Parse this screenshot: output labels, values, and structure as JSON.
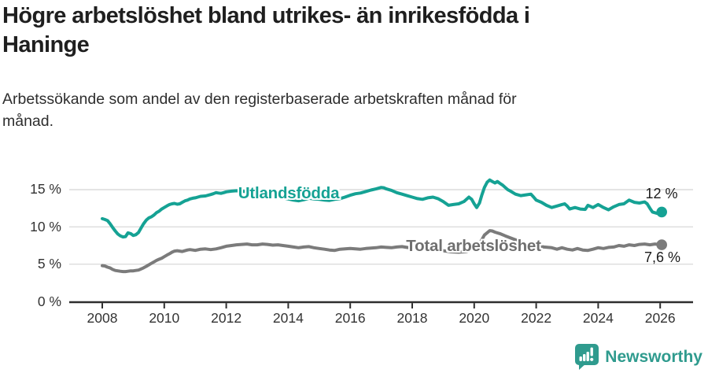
{
  "header": {
    "title": "Högre arbetslöshet bland utrikes- än inrikesfödda i\nHaninge",
    "subtitle": "Arbetssökande som andel av den registerbaserade arbetskraften månad för\nmånad."
  },
  "chart_data": {
    "type": "line",
    "title": "Högre arbetslöshet bland utrikes- än inrikesfödda i Haninge",
    "subtitle": "Arbetssökande som andel av den registerbaserade arbetskraften månad för månad.",
    "unit": "%",
    "xlim": [
      2007.9,
      2026.3
    ],
    "ylim": [
      0,
      16.5
    ],
    "grid": "horizontal",
    "legend_position": "inline-labels",
    "x_ticks": [
      2008,
      2010,
      2012,
      2014,
      2016,
      2018,
      2020,
      2022,
      2024,
      2026
    ],
    "y_ticks": [
      {
        "value": 0,
        "label": "0 %"
      },
      {
        "value": 5,
        "label": "5 %"
      },
      {
        "value": 10,
        "label": "10 %"
      },
      {
        "value": 15,
        "label": "15 %"
      }
    ],
    "series": [
      {
        "name": "Utlandsfödda",
        "color": "#15a294",
        "end_label": "12 %",
        "end_value": 12.0,
        "points": [
          [
            2008.0,
            11.1
          ],
          [
            2008.08,
            11.0
          ],
          [
            2008.17,
            10.85
          ],
          [
            2008.25,
            10.45
          ],
          [
            2008.33,
            9.95
          ],
          [
            2008.42,
            9.45
          ],
          [
            2008.5,
            9.05
          ],
          [
            2008.58,
            8.8
          ],
          [
            2008.67,
            8.65
          ],
          [
            2008.75,
            8.7
          ],
          [
            2008.83,
            9.2
          ],
          [
            2008.92,
            9.1
          ],
          [
            2009.0,
            8.85
          ],
          [
            2009.08,
            8.95
          ],
          [
            2009.17,
            9.25
          ],
          [
            2009.25,
            9.85
          ],
          [
            2009.33,
            10.4
          ],
          [
            2009.42,
            10.9
          ],
          [
            2009.5,
            11.2
          ],
          [
            2009.58,
            11.35
          ],
          [
            2009.67,
            11.6
          ],
          [
            2009.75,
            11.9
          ],
          [
            2009.83,
            12.1
          ],
          [
            2009.92,
            12.4
          ],
          [
            2010.0,
            12.6
          ],
          [
            2010.08,
            12.8
          ],
          [
            2010.17,
            13.0
          ],
          [
            2010.25,
            13.1
          ],
          [
            2010.33,
            13.15
          ],
          [
            2010.42,
            13.05
          ],
          [
            2010.5,
            13.1
          ],
          [
            2010.58,
            13.3
          ],
          [
            2010.67,
            13.5
          ],
          [
            2010.75,
            13.6
          ],
          [
            2010.83,
            13.75
          ],
          [
            2010.92,
            13.85
          ],
          [
            2011.0,
            13.9
          ],
          [
            2011.08,
            14.0
          ],
          [
            2011.17,
            14.1
          ],
          [
            2011.33,
            14.15
          ],
          [
            2011.5,
            14.35
          ],
          [
            2011.58,
            14.45
          ],
          [
            2011.67,
            14.6
          ],
          [
            2011.75,
            14.55
          ],
          [
            2011.83,
            14.5
          ],
          [
            2011.92,
            14.6
          ],
          [
            2012.0,
            14.7
          ],
          [
            2012.17,
            14.8
          ],
          [
            2012.33,
            14.85
          ],
          [
            2012.5,
            14.8
          ],
          [
            2012.67,
            14.7
          ],
          [
            2012.83,
            14.65
          ],
          [
            2013.0,
            14.6
          ],
          [
            2013.17,
            14.5
          ],
          [
            2013.33,
            14.35
          ],
          [
            2013.5,
            14.2
          ],
          [
            2013.67,
            14.0
          ],
          [
            2013.83,
            13.9
          ],
          [
            2014.0,
            13.75
          ],
          [
            2014.17,
            13.6
          ],
          [
            2014.33,
            13.5
          ],
          [
            2014.5,
            13.65
          ],
          [
            2014.67,
            13.85
          ],
          [
            2014.83,
            13.75
          ],
          [
            2015.0,
            13.7
          ],
          [
            2015.17,
            13.6
          ],
          [
            2015.33,
            13.55
          ],
          [
            2015.5,
            13.7
          ],
          [
            2015.67,
            13.8
          ],
          [
            2015.83,
            14.0
          ],
          [
            2016.0,
            14.25
          ],
          [
            2016.17,
            14.45
          ],
          [
            2016.33,
            14.55
          ],
          [
            2016.5,
            14.75
          ],
          [
            2016.67,
            14.95
          ],
          [
            2016.83,
            15.1
          ],
          [
            2017.0,
            15.3
          ],
          [
            2017.08,
            15.25
          ],
          [
            2017.17,
            15.1
          ],
          [
            2017.33,
            14.9
          ],
          [
            2017.5,
            14.6
          ],
          [
            2017.67,
            14.4
          ],
          [
            2017.83,
            14.2
          ],
          [
            2018.0,
            14.0
          ],
          [
            2018.17,
            13.8
          ],
          [
            2018.33,
            13.7
          ],
          [
            2018.5,
            13.9
          ],
          [
            2018.67,
            14.0
          ],
          [
            2018.83,
            13.8
          ],
          [
            2019.0,
            13.4
          ],
          [
            2019.17,
            12.9
          ],
          [
            2019.33,
            13.0
          ],
          [
            2019.5,
            13.1
          ],
          [
            2019.67,
            13.4
          ],
          [
            2019.83,
            14.0
          ],
          [
            2019.92,
            13.7
          ],
          [
            2020.0,
            13.1
          ],
          [
            2020.08,
            12.6
          ],
          [
            2020.17,
            13.2
          ],
          [
            2020.25,
            14.3
          ],
          [
            2020.33,
            15.3
          ],
          [
            2020.42,
            16.0
          ],
          [
            2020.5,
            16.3
          ],
          [
            2020.58,
            16.1
          ],
          [
            2020.67,
            15.9
          ],
          [
            2020.75,
            16.1
          ],
          [
            2020.83,
            15.85
          ],
          [
            2020.92,
            15.6
          ],
          [
            2021.0,
            15.3
          ],
          [
            2021.08,
            15.0
          ],
          [
            2021.17,
            14.8
          ],
          [
            2021.33,
            14.4
          ],
          [
            2021.5,
            14.2
          ],
          [
            2021.67,
            14.3
          ],
          [
            2021.83,
            14.4
          ],
          [
            2021.92,
            14.0
          ],
          [
            2022.0,
            13.6
          ],
          [
            2022.17,
            13.3
          ],
          [
            2022.33,
            12.9
          ],
          [
            2022.5,
            12.6
          ],
          [
            2022.67,
            12.8
          ],
          [
            2022.83,
            13.0
          ],
          [
            2022.92,
            13.1
          ],
          [
            2023.0,
            12.8
          ],
          [
            2023.08,
            12.4
          ],
          [
            2023.25,
            12.6
          ],
          [
            2023.42,
            12.4
          ],
          [
            2023.58,
            12.35
          ],
          [
            2023.67,
            12.9
          ],
          [
            2023.83,
            12.6
          ],
          [
            2024.0,
            13.0
          ],
          [
            2024.17,
            12.6
          ],
          [
            2024.33,
            12.3
          ],
          [
            2024.5,
            12.7
          ],
          [
            2024.67,
            13.0
          ],
          [
            2024.83,
            13.1
          ],
          [
            2025.0,
            13.6
          ],
          [
            2025.17,
            13.3
          ],
          [
            2025.33,
            13.2
          ],
          [
            2025.5,
            13.35
          ],
          [
            2025.58,
            13.1
          ],
          [
            2025.67,
            12.5
          ],
          [
            2025.75,
            12.0
          ],
          [
            2025.83,
            11.9
          ],
          [
            2025.92,
            11.8
          ],
          [
            2026.05,
            12.0
          ]
        ]
      },
      {
        "name": "Total arbetslöshet",
        "color": "#7b7b7b",
        "label_color": "#6f6f6f",
        "end_label": "7,6 %",
        "end_value": 7.6,
        "points": [
          [
            2008.0,
            4.8
          ],
          [
            2008.08,
            4.75
          ],
          [
            2008.17,
            4.6
          ],
          [
            2008.25,
            4.5
          ],
          [
            2008.33,
            4.3
          ],
          [
            2008.42,
            4.15
          ],
          [
            2008.5,
            4.1
          ],
          [
            2008.58,
            4.05
          ],
          [
            2008.67,
            4.0
          ],
          [
            2008.75,
            4.0
          ],
          [
            2008.83,
            4.05
          ],
          [
            2008.92,
            4.1
          ],
          [
            2009.0,
            4.1
          ],
          [
            2009.08,
            4.15
          ],
          [
            2009.17,
            4.2
          ],
          [
            2009.25,
            4.35
          ],
          [
            2009.33,
            4.5
          ],
          [
            2009.42,
            4.7
          ],
          [
            2009.5,
            4.9
          ],
          [
            2009.58,
            5.1
          ],
          [
            2009.67,
            5.3
          ],
          [
            2009.75,
            5.5
          ],
          [
            2009.83,
            5.65
          ],
          [
            2009.92,
            5.8
          ],
          [
            2010.0,
            6.0
          ],
          [
            2010.08,
            6.2
          ],
          [
            2010.17,
            6.4
          ],
          [
            2010.25,
            6.6
          ],
          [
            2010.33,
            6.75
          ],
          [
            2010.42,
            6.8
          ],
          [
            2010.5,
            6.75
          ],
          [
            2010.58,
            6.7
          ],
          [
            2010.67,
            6.8
          ],
          [
            2010.75,
            6.9
          ],
          [
            2010.83,
            6.95
          ],
          [
            2010.92,
            6.9
          ],
          [
            2011.0,
            6.85
          ],
          [
            2011.17,
            7.0
          ],
          [
            2011.33,
            7.05
          ],
          [
            2011.5,
            6.95
          ],
          [
            2011.67,
            7.05
          ],
          [
            2011.83,
            7.2
          ],
          [
            2012.0,
            7.4
          ],
          [
            2012.17,
            7.5
          ],
          [
            2012.33,
            7.6
          ],
          [
            2012.5,
            7.65
          ],
          [
            2012.67,
            7.7
          ],
          [
            2012.83,
            7.6
          ],
          [
            2013.0,
            7.6
          ],
          [
            2013.17,
            7.7
          ],
          [
            2013.33,
            7.65
          ],
          [
            2013.5,
            7.55
          ],
          [
            2013.67,
            7.6
          ],
          [
            2013.83,
            7.5
          ],
          [
            2014.0,
            7.4
          ],
          [
            2014.17,
            7.3
          ],
          [
            2014.33,
            7.2
          ],
          [
            2014.5,
            7.3
          ],
          [
            2014.67,
            7.35
          ],
          [
            2014.83,
            7.2
          ],
          [
            2015.0,
            7.1
          ],
          [
            2015.17,
            7.0
          ],
          [
            2015.33,
            6.9
          ],
          [
            2015.5,
            6.85
          ],
          [
            2015.67,
            7.0
          ],
          [
            2015.83,
            7.05
          ],
          [
            2016.0,
            7.1
          ],
          [
            2016.17,
            7.05
          ],
          [
            2016.33,
            7.0
          ],
          [
            2016.5,
            7.1
          ],
          [
            2016.67,
            7.15
          ],
          [
            2016.83,
            7.2
          ],
          [
            2017.0,
            7.3
          ],
          [
            2017.17,
            7.25
          ],
          [
            2017.33,
            7.2
          ],
          [
            2017.5,
            7.3
          ],
          [
            2017.67,
            7.35
          ],
          [
            2017.83,
            7.25
          ],
          [
            2018.0,
            7.15
          ],
          [
            2018.25,
            7.05
          ],
          [
            2018.5,
            7.0
          ],
          [
            2018.75,
            6.9
          ],
          [
            2019.0,
            6.8
          ],
          [
            2019.25,
            6.65
          ],
          [
            2019.5,
            6.6
          ],
          [
            2019.75,
            6.7
          ],
          [
            2020.0,
            7.0
          ],
          [
            2020.17,
            7.7
          ],
          [
            2020.33,
            8.9
          ],
          [
            2020.5,
            9.5
          ],
          [
            2020.58,
            9.45
          ],
          [
            2020.67,
            9.3
          ],
          [
            2020.83,
            9.1
          ],
          [
            2021.0,
            8.8
          ],
          [
            2021.25,
            8.4
          ],
          [
            2021.5,
            8.0
          ],
          [
            2021.75,
            7.7
          ],
          [
            2022.0,
            7.5
          ],
          [
            2022.25,
            7.3
          ],
          [
            2022.5,
            7.2
          ],
          [
            2022.67,
            7.0
          ],
          [
            2022.83,
            7.2
          ],
          [
            2023.0,
            7.0
          ],
          [
            2023.17,
            6.9
          ],
          [
            2023.33,
            7.1
          ],
          [
            2023.5,
            6.9
          ],
          [
            2023.67,
            6.85
          ],
          [
            2023.83,
            7.0
          ],
          [
            2024.0,
            7.2
          ],
          [
            2024.17,
            7.1
          ],
          [
            2024.33,
            7.25
          ],
          [
            2024.5,
            7.3
          ],
          [
            2024.67,
            7.5
          ],
          [
            2024.83,
            7.4
          ],
          [
            2025.0,
            7.6
          ],
          [
            2025.17,
            7.5
          ],
          [
            2025.33,
            7.65
          ],
          [
            2025.5,
            7.7
          ],
          [
            2025.67,
            7.6
          ],
          [
            2025.83,
            7.7
          ],
          [
            2026.05,
            7.6
          ]
        ]
      }
    ]
  },
  "footer": {
    "brand": "Newsworthy",
    "brand_color": "#2f9b8e"
  }
}
